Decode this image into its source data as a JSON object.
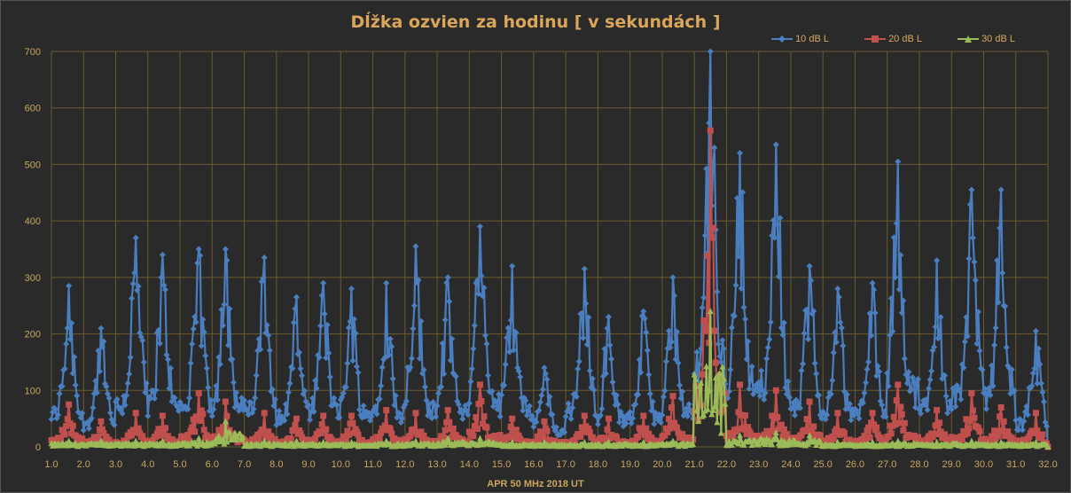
{
  "chart_data": {
    "type": "line",
    "title": "Dĺžka ozvien za hodinu [ v sekundách ]",
    "xlabel": "APR 50 MHz   2018  UT",
    "ylabel": "",
    "ylim": [
      0,
      700
    ],
    "yticks": [
      "0",
      "100",
      "200",
      "300",
      "400",
      "500",
      "600",
      "700"
    ],
    "xlim": [
      1.0,
      32.0
    ],
    "xticks": [
      "1.0",
      "2.0",
      "3.0",
      "4.0",
      "5.0",
      "6.0",
      "7.0",
      "8.0",
      "9.0",
      "10.0",
      "11.0",
      "12.0",
      "13.0",
      "14.0",
      "15.0",
      "16.0",
      "17.0",
      "18.0",
      "19.0",
      "20.0",
      "21.0",
      "22.0",
      "23.0",
      "24.0",
      "25.0",
      "26.0",
      "27.0",
      "28.0",
      "29.0",
      "30.0",
      "31.0",
      "32.0"
    ],
    "grid": true,
    "legend_position": "top-right",
    "colors": {
      "s10": "#4a7ebf",
      "s20": "#c0504d",
      "s30": "#9bbb59",
      "background": "#2b2b2b",
      "grid": "#6b5a2e",
      "text": "#c9a65e"
    },
    "series_meta": [
      {
        "name": "10 dB L",
        "marker": "diamond"
      },
      {
        "name": "20 dB L",
        "marker": "square"
      },
      {
        "name": "30 dB L",
        "marker": "triangle"
      }
    ],
    "sampling": "hourly values (x = day + hour/24), 1 Apr 2018 – 31 Apr 2018",
    "daily_peaks": {
      "days": [
        1,
        2,
        3,
        4,
        5,
        6,
        7,
        8,
        9,
        10,
        11,
        12,
        13,
        14,
        15,
        16,
        17,
        18,
        19,
        20,
        21,
        22,
        23,
        24,
        25,
        26,
        27,
        28,
        29,
        30,
        31
      ],
      "s10_max": [
        285,
        210,
        370,
        340,
        350,
        350,
        335,
        265,
        290,
        280,
        290,
        355,
        300,
        390,
        320,
        140,
        315,
        230,
        240,
        300,
        700,
        520,
        535,
        320,
        280,
        290,
        505,
        330,
        455,
        455,
        205
      ],
      "s20_max": [
        75,
        45,
        60,
        55,
        95,
        80,
        60,
        50,
        55,
        55,
        65,
        60,
        65,
        110,
        50,
        45,
        55,
        50,
        55,
        90,
        560,
        110,
        100,
        80,
        60,
        60,
        110,
        65,
        95,
        70,
        60
      ],
      "s30_max": [
        10,
        10,
        10,
        10,
        15,
        45,
        10,
        10,
        8,
        8,
        10,
        10,
        15,
        15,
        8,
        8,
        8,
        8,
        8,
        10,
        240,
        20,
        25,
        20,
        8,
        8,
        10,
        8,
        10,
        8,
        8
      ]
    }
  },
  "legend": {
    "s10": "10 dB L",
    "s20": "20 dB L",
    "s30": "30 dB L"
  }
}
